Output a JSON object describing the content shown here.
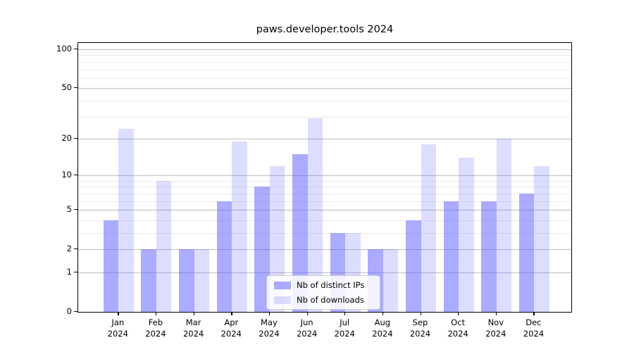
{
  "figure": {
    "title": "paws.developer.tools 2024"
  },
  "chart_data": {
    "type": "bar",
    "title": "paws.developer.tools 2024",
    "categories": [
      "Jan",
      "Feb",
      "Mar",
      "Apr",
      "May",
      "Jun",
      "Jul",
      "Aug",
      "Sep",
      "Oct",
      "Nov",
      "Dec"
    ],
    "category_year": "2024",
    "series": [
      {
        "name": "Nb of distinct IPs",
        "values": [
          4,
          2,
          2,
          6,
          8,
          15,
          3,
          2,
          4,
          6,
          6,
          7
        ],
        "color": "rgba(102,102,255,0.55)"
      },
      {
        "name": "Nb of downloads",
        "values": [
          24,
          9,
          2,
          19,
          12,
          29,
          3,
          2,
          18,
          14,
          20,
          12
        ],
        "color": "rgba(102,102,255,0.22)"
      }
    ],
    "yscale": "log1p",
    "ylim": [
      0,
      113
    ],
    "major_yticks": [
      0,
      1,
      2,
      5,
      10,
      20,
      50,
      100
    ],
    "minor_yticks": [
      3,
      4,
      6,
      7,
      8,
      9,
      30,
      40,
      60,
      70,
      80,
      90
    ],
    "grid": true,
    "legend_position": "lower center",
    "colors": {
      "major_grid": "#bdbdbd",
      "minor_grid": "#ebebeb",
      "spine": "#000000",
      "text": "#000000"
    }
  }
}
